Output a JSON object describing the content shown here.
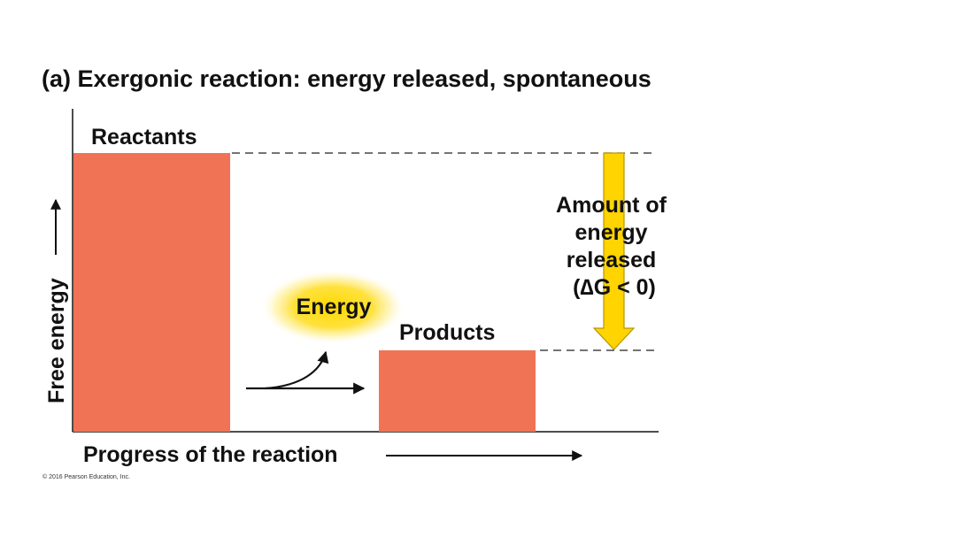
{
  "title": "(a) Exergonic reaction: energy released, spontaneous",
  "reactants_label": "Reactants",
  "products_label": "Products",
  "energy_label": "Energy",
  "y_axis_label": "Free energy",
  "x_axis_label": "Progress of the reaction",
  "released_label": [
    "Amount of",
    "energy",
    "released",
    "(∆G < 0)"
  ],
  "copyright": "© 2016 Pearson Education, Inc.",
  "colors": {
    "bar": "#f07355",
    "arrow_fill": "#ffd400",
    "arrow_stroke": "#b89600",
    "glow": "#ffd800",
    "text": "#111111"
  }
}
